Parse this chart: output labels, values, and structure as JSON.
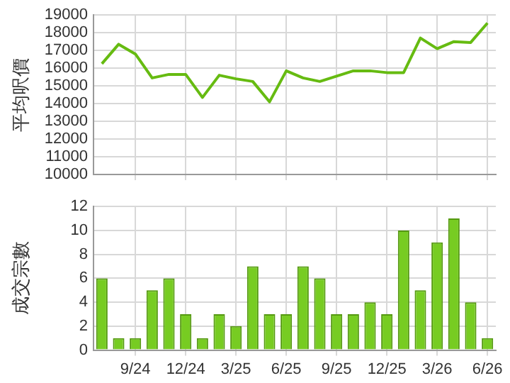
{
  "chart_data": [
    {
      "type": "line",
      "ylabel": "平均呎價",
      "categories": [
        null,
        null,
        null,
        null,
        null,
        null,
        null,
        null,
        null,
        null,
        null,
        null,
        null,
        null,
        null,
        null,
        null,
        null,
        null,
        null,
        null,
        null,
        null,
        null
      ],
      "series": [
        {
          "color": "#66bb11",
          "values": [
            16250,
            17350,
            16800,
            15450,
            15650,
            15650,
            14350,
            15600,
            15400,
            15250,
            14100,
            15850,
            15450,
            15250,
            15550,
            15850,
            15850,
            15750,
            15750,
            17700,
            17100,
            17500,
            17450,
            18550
          ]
        }
      ],
      "ylim": [
        10000,
        19000
      ],
      "yticks": [
        10000,
        11000,
        12000,
        13000,
        14000,
        15000,
        16000,
        17000,
        18000,
        19000
      ],
      "grid": true,
      "tick_labels": "y",
      "marker": "none",
      "legend": false
    },
    {
      "type": "bar",
      "ylabel": "成交宗數",
      "categories": [
        null,
        null,
        "9/24",
        null,
        null,
        "12/24",
        null,
        null,
        "3/25",
        null,
        null,
        "6/25",
        null,
        null,
        "9/25",
        null,
        null,
        "12/25",
        null,
        null,
        "3/26",
        null,
        null,
        "6/26"
      ],
      "series": [
        {
          "color": "#77cc22",
          "values": [
            6,
            1,
            1,
            5,
            6,
            3,
            1,
            3,
            2,
            7,
            3,
            3,
            7,
            6,
            3,
            3,
            4,
            3,
            10,
            5,
            9,
            11,
            4,
            1
          ]
        }
      ],
      "ylim": [
        0,
        12
      ],
      "yticks": [
        0,
        2,
        4,
        6,
        8,
        10,
        12
      ],
      "grid": true,
      "legend": false
    }
  ]
}
